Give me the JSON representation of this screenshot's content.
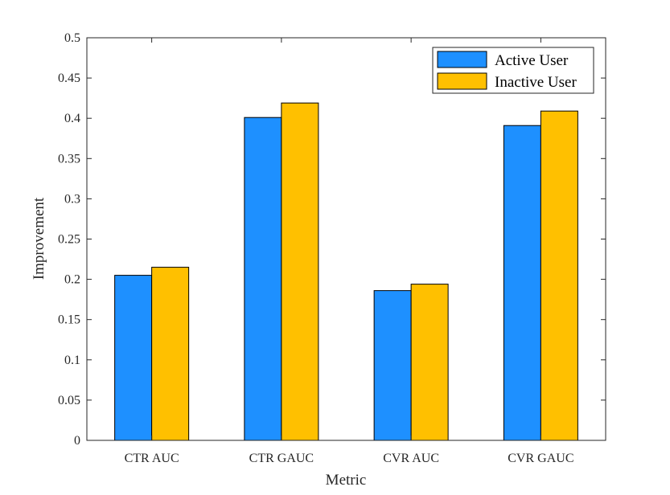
{
  "chart_data": {
    "type": "bar",
    "title": "",
    "xlabel": "Metric",
    "ylabel": "Improvement",
    "categories": [
      "CTR AUC",
      "CTR GAUC",
      "CVR AUC",
      "CVR GAUC"
    ],
    "series": [
      {
        "name": "Active User",
        "color": "#1e90ff",
        "values": [
          0.205,
          0.401,
          0.186,
          0.391
        ]
      },
      {
        "name": "Inactive User",
        "color": "#ffc000",
        "values": [
          0.215,
          0.419,
          0.194,
          0.409
        ]
      }
    ],
    "ylim": [
      0,
      0.5
    ],
    "yticks": [
      "0",
      "0.05",
      "0.1",
      "0.15",
      "0.2",
      "0.25",
      "0.3",
      "0.35",
      "0.4",
      "0.45",
      "0.5"
    ],
    "grid": false,
    "legend_position": "top-right"
  }
}
